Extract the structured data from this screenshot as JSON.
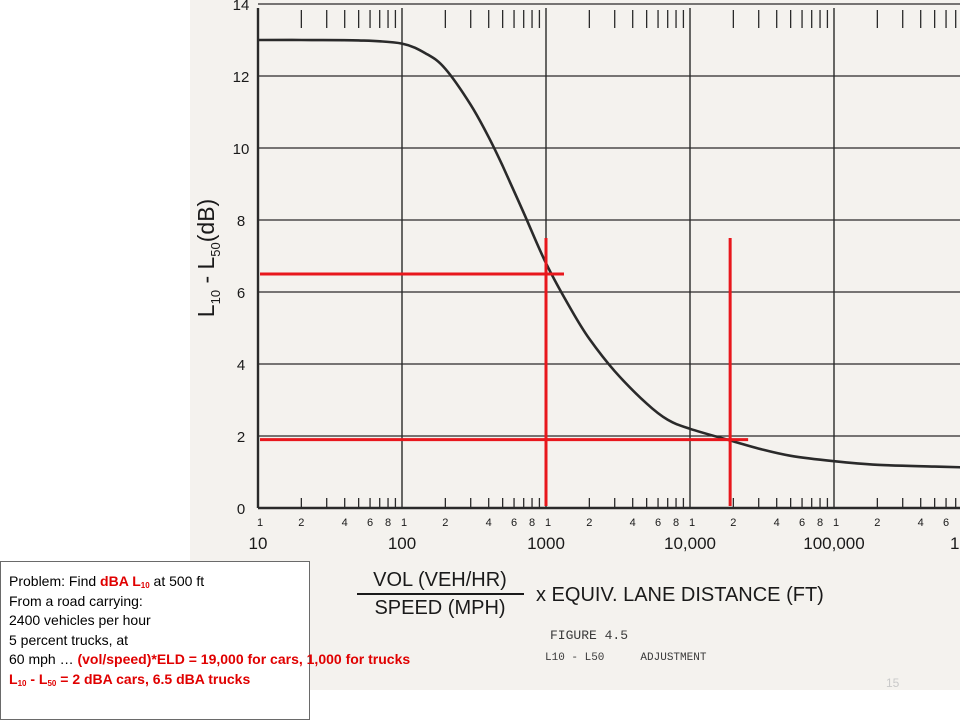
{
  "chart_data": {
    "type": "line",
    "title": "",
    "xlabel_numerator": "VOL (VEH/HR)",
    "xlabel_denominator": "SPEED (MPH)",
    "xlabel_suffix": "x  EQUIV. LANE DISTANCE (FT)",
    "ylabel_text": "L10 - L50(dB)",
    "ylabel_parts": {
      "a": "L",
      "a_sub": "10",
      "b": " - L",
      "b_sub": "50",
      "c": "(dB)"
    },
    "x_scale": "log",
    "xlim": [
      10,
      1000000
    ],
    "ylim": [
      0,
      14
    ],
    "grid": true,
    "y_ticks": [
      "0",
      "2",
      "4",
      "6",
      "8",
      "10",
      "12",
      "14"
    ],
    "x_major_labels": [
      "10",
      "100",
      "1000",
      "10,000",
      "100,000",
      "1,00"
    ],
    "x_minor_labels": [
      "1",
      "2",
      "4",
      "6",
      "8",
      "1",
      "2",
      "4",
      "6",
      "8",
      "1",
      "2",
      "4",
      "6",
      "8",
      "1",
      "2",
      "4",
      "6",
      "8",
      "1",
      "2",
      "4",
      "6",
      "8",
      "1",
      "2",
      "4",
      "6"
    ],
    "series": [
      {
        "x": [
          10,
          20,
          50,
          100,
          150,
          200,
          300,
          400,
          500,
          700,
          1000,
          1500,
          2000,
          3000,
          5000,
          7000,
          10000,
          20000,
          30000,
          50000,
          100000,
          200000,
          500000,
          1000000
        ],
        "y": [
          13,
          13,
          12.99,
          12.9,
          12.6,
          12.2,
          11.2,
          10.3,
          9.5,
          8.2,
          6.8,
          5.5,
          4.7,
          3.8,
          2.9,
          2.45,
          2.2,
          1.85,
          1.65,
          1.45,
          1.3,
          1.2,
          1.15,
          1.12
        ]
      }
    ],
    "annotations": [
      {
        "label": "trucks",
        "x": 1000,
        "y": 6.5,
        "color": "#e8171c"
      },
      {
        "label": "cars",
        "x": 19000,
        "y": 1.9,
        "color": "#e8171c"
      }
    ]
  },
  "caption": {
    "figure": "FIGURE 4.5",
    "subtitle_a": "L10 - L50",
    "subtitle_b": "ADJUSTMENT"
  },
  "slide_number": "15",
  "problem": {
    "line1_prefix": "Problem: Find ",
    "line1_red": "dBA L",
    "line1_red_sub": "10",
    "line1_suffix": " at 500 ft",
    "line2": "From a road carrying:",
    "line3": "2400 vehicles per hour",
    "line4": "5 percent trucks, at",
    "line5_prefix": "60 mph … ",
    "line5_red": "(vol/speed)*ELD = 19,000 for cars, 1,000 for trucks",
    "line6_a": "L",
    "line6_a_sub": "10",
    "line6_b": " - L",
    "line6_b_sub": "50",
    "line6_c": " = 2 dBA cars, 6.5 dBA trucks"
  },
  "colors": {
    "curve": "#2a2a2a",
    "grid": "#2a2a2a",
    "annotation": "#e8171c",
    "problem_red": "#e00000"
  }
}
